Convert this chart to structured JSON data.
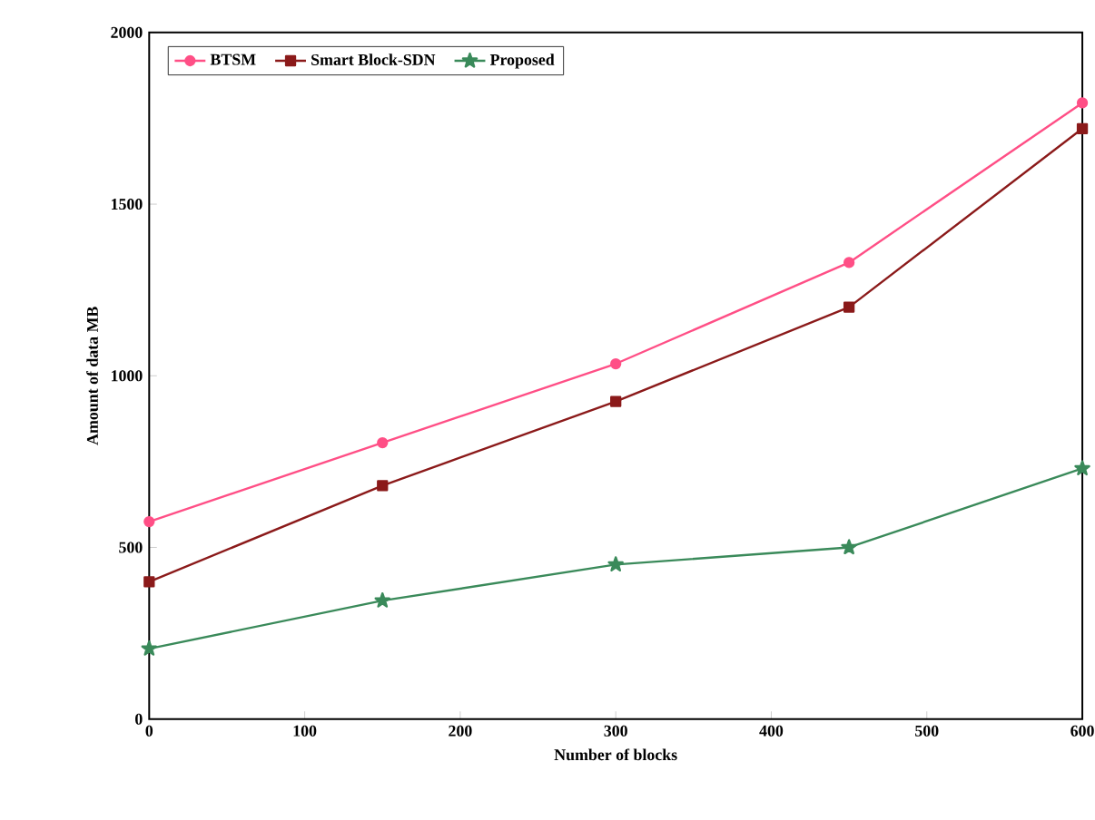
{
  "chart_data": {
    "type": "line",
    "xlabel": "Number of blocks",
    "ylabel": "Amount of data MB",
    "x": [
      0,
      150,
      300,
      450,
      600
    ],
    "series": [
      {
        "name": "BTSM",
        "color": "#ff4f86",
        "marker": "circle",
        "values": [
          575,
          805,
          1035,
          1330,
          1795
        ]
      },
      {
        "name": "Smart Block-SDN",
        "color": "#8b1a1a",
        "marker": "square",
        "values": [
          400,
          680,
          925,
          1200,
          1720
        ]
      },
      {
        "name": "Proposed",
        "color": "#3a8a5a",
        "marker": "star",
        "values": [
          205,
          345,
          450,
          500,
          730
        ]
      }
    ],
    "xlim": [
      0,
      600
    ],
    "ylim": [
      0,
      2000
    ],
    "xticks": [
      0,
      100,
      200,
      300,
      400,
      500,
      600
    ],
    "yticks": [
      0,
      500,
      1000,
      1500,
      2000
    ],
    "grid": false,
    "legend": "top left",
    "line_style": "solid"
  }
}
